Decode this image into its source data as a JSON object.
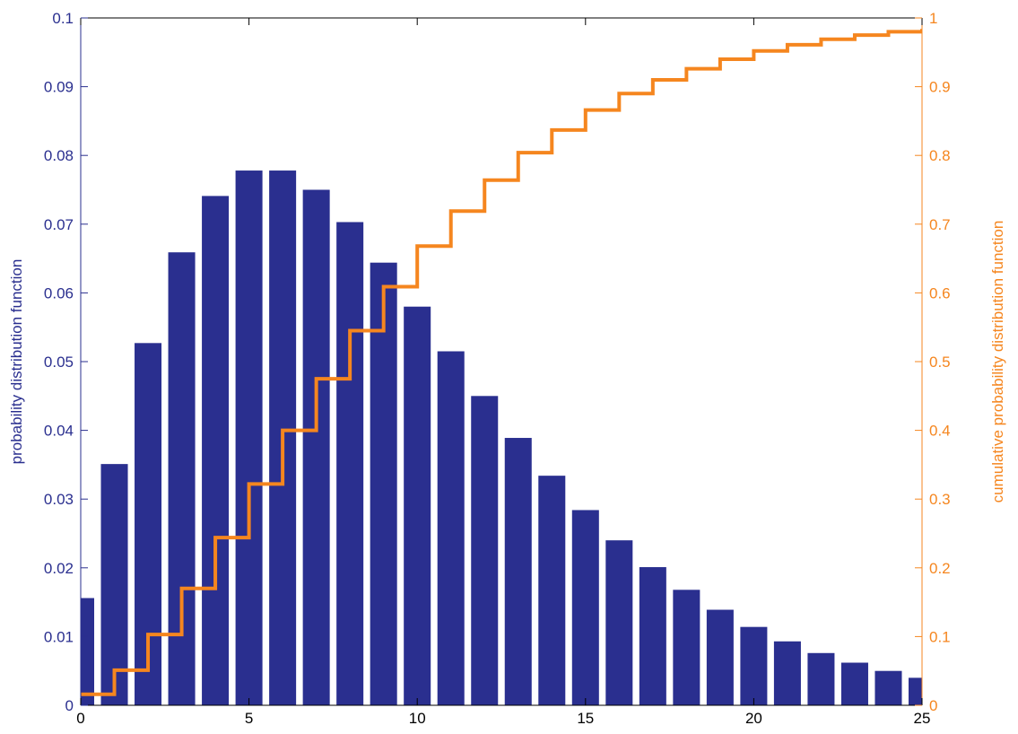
{
  "chart_data": {
    "type": "bar",
    "title": "",
    "xlabel": "",
    "ylabel": "probability distribution function",
    "y2label": "cumulative probability distribution function",
    "xlim": [
      0,
      25
    ],
    "ylim": [
      0,
      0.1
    ],
    "y2lim": [
      0,
      1
    ],
    "grid": false,
    "colors": {
      "bars": "#2a2f8f",
      "cdf": "#f5861f",
      "left_axis": "#2a2f8f",
      "right_axis": "#f5861f",
      "frame": "#000000"
    },
    "x_ticks": [
      0,
      5,
      10,
      15,
      20,
      25
    ],
    "x_tick_labels": [
      "0",
      "5",
      "10",
      "15",
      "20",
      "25"
    ],
    "y_ticks": [
      0,
      0.01,
      0.02,
      0.03,
      0.04,
      0.05,
      0.06,
      0.07,
      0.08,
      0.09,
      0.1
    ],
    "y_tick_labels": [
      "0",
      "0.01",
      "0.02",
      "0.03",
      "0.04",
      "0.05",
      "0.06",
      "0.07",
      "0.08",
      "0.09",
      "0.1"
    ],
    "y2_ticks": [
      0,
      0.1,
      0.2,
      0.3,
      0.4,
      0.5,
      0.6,
      0.7,
      0.8,
      0.9,
      1
    ],
    "y2_tick_labels": [
      "0",
      "0.1",
      "0.2",
      "0.3",
      "0.4",
      "0.5",
      "0.6",
      "0.7",
      "0.8",
      "0.9",
      "1"
    ],
    "series": [
      {
        "kind": "bar",
        "axis": "left",
        "x": [
          0,
          1,
          2,
          3,
          4,
          5,
          6,
          7,
          8,
          9,
          10,
          11,
          12,
          13,
          14,
          15,
          16,
          17,
          18,
          19,
          20,
          21,
          22,
          23,
          24,
          25
        ],
        "values": [
          0.0156,
          0.0351,
          0.0527,
          0.0659,
          0.0741,
          0.0778,
          0.0778,
          0.075,
          0.0703,
          0.0644,
          0.058,
          0.0515,
          0.045,
          0.0389,
          0.0334,
          0.0284,
          0.024,
          0.0201,
          0.0168,
          0.0139,
          0.0114,
          0.0093,
          0.0076,
          0.0062,
          0.005,
          0.004
        ]
      },
      {
        "kind": "stairs",
        "axis": "right",
        "x": [
          0,
          1,
          2,
          3,
          4,
          5,
          6,
          7,
          8,
          9,
          10,
          11,
          12,
          13,
          14,
          15,
          16,
          17,
          18,
          19,
          20,
          21,
          22,
          23,
          24,
          25
        ],
        "values": [
          0.016,
          0.051,
          0.103,
          0.17,
          0.244,
          0.322,
          0.4,
          0.475,
          0.545,
          0.609,
          0.668,
          0.719,
          0.764,
          0.804,
          0.837,
          0.866,
          0.89,
          0.91,
          0.926,
          0.94,
          0.952,
          0.961,
          0.969,
          0.975,
          0.98,
          0.984
        ]
      }
    ]
  }
}
